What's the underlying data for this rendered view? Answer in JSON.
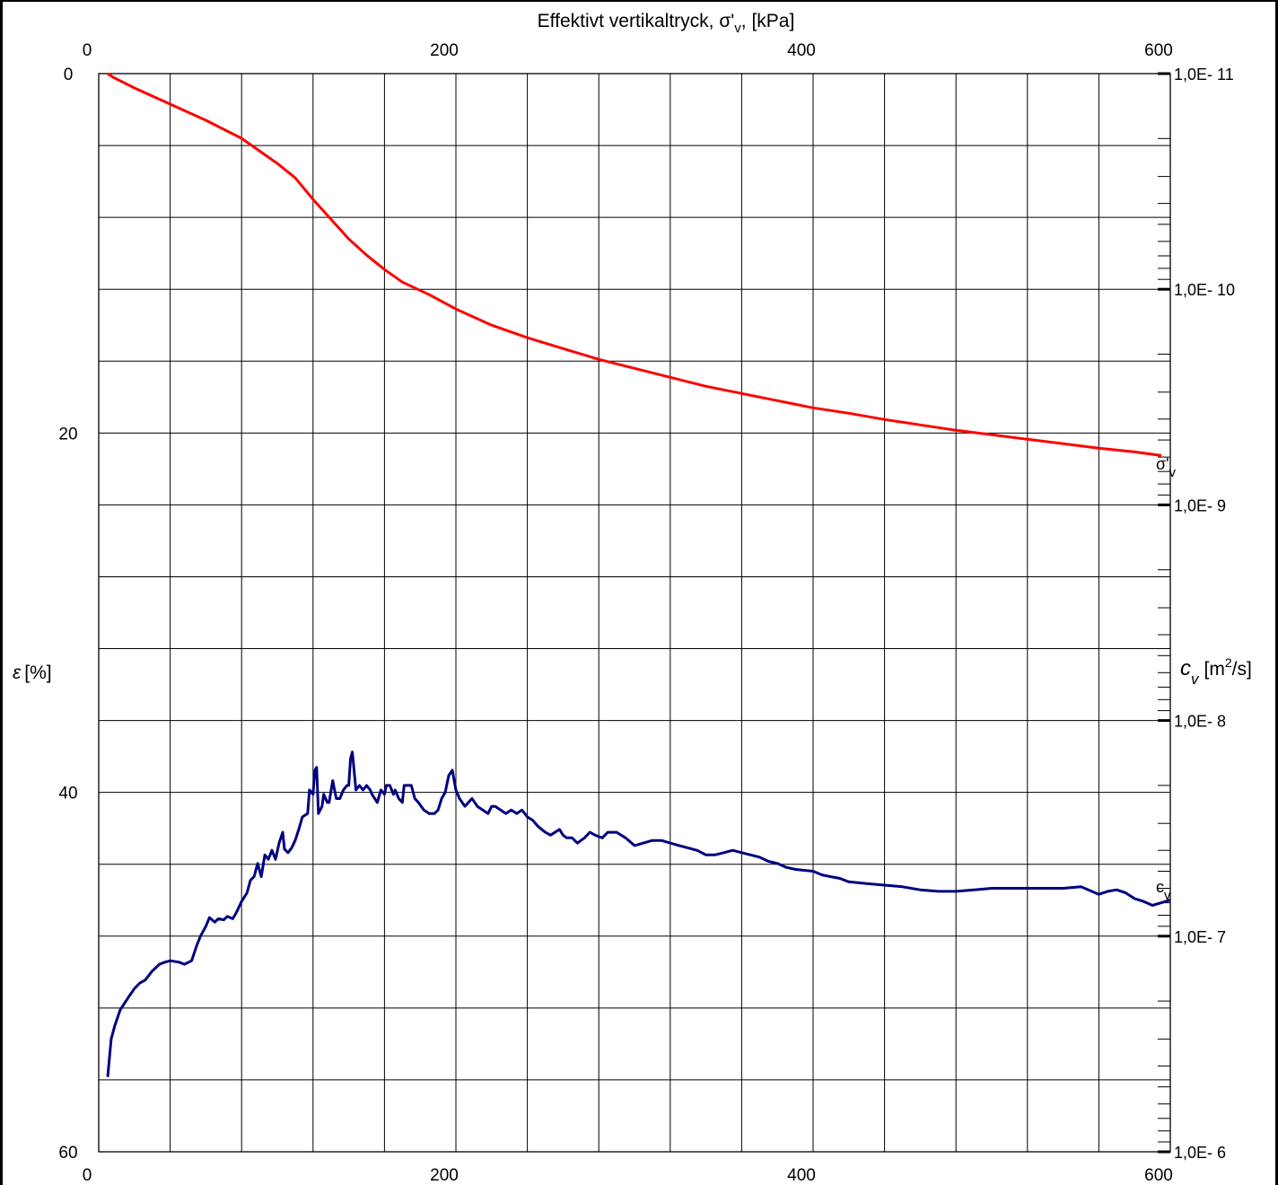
{
  "chart_data": {
    "type": "line",
    "title": "Effektivt vertikaltryck, σ'v, [kPa]",
    "title_parts": {
      "main": "Effektivt vertikaltryck, σ'",
      "sub": "v",
      "tail": ", [kPa]"
    },
    "xlim": [
      0,
      600
    ],
    "x_ticks": [
      0,
      200,
      400,
      600
    ],
    "y_left": {
      "label": "ε [%]",
      "label_symbol": "ε",
      "label_unit": "[%]",
      "lim": [
        0,
        60
      ],
      "ticks": [
        0,
        20,
        40,
        60
      ],
      "inverted": true
    },
    "y_right": {
      "label": "cv [m2/s]",
      "label_symbol": "c",
      "label_sub": "v",
      "label_unit_pre": "[m",
      "label_unit_sup": "2",
      "label_unit_post": "/s]",
      "scale": "log",
      "lim": [
        1e-11,
        1e-06
      ],
      "ticks": [
        1e-11,
        1e-10,
        1e-09,
        1e-08,
        1e-07,
        1e-06
      ],
      "tick_labels": [
        "1,0E- 11",
        "1,0E- 10",
        "1,0E- 9",
        "1,0E- 8",
        "1,0E- 7",
        "1,0E- 6"
      ]
    },
    "grid": true,
    "series": [
      {
        "name": "σ'v",
        "label_main": "σ'",
        "label_sub": "v",
        "axis": "left",
        "color": "#ff0000",
        "points": [
          [
            5,
            0
          ],
          [
            8,
            0.2
          ],
          [
            20,
            0.8
          ],
          [
            40,
            1.7
          ],
          [
            60,
            2.6
          ],
          [
            80,
            3.6
          ],
          [
            90,
            4.3
          ],
          [
            100,
            5.0
          ],
          [
            110,
            5.8
          ],
          [
            120,
            7.0
          ],
          [
            130,
            8.1
          ],
          [
            140,
            9.2
          ],
          [
            150,
            10.1
          ],
          [
            160,
            10.9
          ],
          [
            170,
            11.6
          ],
          [
            185,
            12.3
          ],
          [
            200,
            13.1
          ],
          [
            220,
            14.0
          ],
          [
            240,
            14.7
          ],
          [
            260,
            15.3
          ],
          [
            280,
            15.9
          ],
          [
            300,
            16.4
          ],
          [
            320,
            16.9
          ],
          [
            340,
            17.4
          ],
          [
            360,
            17.8
          ],
          [
            380,
            18.2
          ],
          [
            400,
            18.6
          ],
          [
            420,
            18.9
          ],
          [
            440,
            19.25
          ],
          [
            460,
            19.55
          ],
          [
            480,
            19.85
          ],
          [
            500,
            20.1
          ],
          [
            520,
            20.35
          ],
          [
            540,
            20.6
          ],
          [
            560,
            20.85
          ],
          [
            580,
            21.05
          ],
          [
            595,
            21.25
          ]
        ]
      },
      {
        "name": "cv",
        "label_main": "c",
        "label_sub": "v",
        "axis": "right",
        "color": "#000080",
        "points": [
          [
            5,
            4.5e-07
          ],
          [
            7,
            3e-07
          ],
          [
            9,
            2.6e-07
          ],
          [
            12,
            2.2e-07
          ],
          [
            17,
            1.9e-07
          ],
          [
            20,
            1.75e-07
          ],
          [
            23,
            1.65e-07
          ],
          [
            26,
            1.6e-07
          ],
          [
            30,
            1.45e-07
          ],
          [
            34,
            1.35e-07
          ],
          [
            37,
            1.32e-07
          ],
          [
            40,
            1.3e-07
          ],
          [
            45,
            1.32e-07
          ],
          [
            48,
            1.35e-07
          ],
          [
            52,
            1.3e-07
          ],
          [
            55,
            1.1e-07
          ],
          [
            57,
            1e-07
          ],
          [
            60,
            9e-08
          ],
          [
            62,
            8.2e-08
          ],
          [
            65,
            8.6e-08
          ],
          [
            67,
            8.3e-08
          ],
          [
            70,
            8.4e-08
          ],
          [
            72,
            8.1e-08
          ],
          [
            75,
            8.3e-08
          ],
          [
            77,
            7.8e-08
          ],
          [
            80,
            6.9e-08
          ],
          [
            83,
            6.3e-08
          ],
          [
            85,
            5.5e-08
          ],
          [
            87,
            5.3e-08
          ],
          [
            89,
            4.6e-08
          ],
          [
            91,
            5.3e-08
          ],
          [
            93,
            4.2e-08
          ],
          [
            95,
            4.4e-08
          ],
          [
            97,
            4e-08
          ],
          [
            99,
            4.4e-08
          ],
          [
            101,
            3.7e-08
          ],
          [
            103,
            3.3e-08
          ],
          [
            104,
            3.95e-08
          ],
          [
            106,
            4.1e-08
          ],
          [
            108,
            3.9e-08
          ],
          [
            110,
            3.6e-08
          ],
          [
            112,
            3.2e-08
          ],
          [
            114,
            2.8e-08
          ],
          [
            117,
            2.7e-08
          ],
          [
            118,
            2.1e-08
          ],
          [
            120,
            2.2e-08
          ],
          [
            121,
            1.7e-08
          ],
          [
            122,
            1.65e-08
          ],
          [
            123,
            2.7e-08
          ],
          [
            125,
            2.5e-08
          ],
          [
            126,
            2.2e-08
          ],
          [
            128,
            2.4e-08
          ],
          [
            129,
            2.4e-08
          ],
          [
            131,
            1.9e-08
          ],
          [
            133,
            2.3e-08
          ],
          [
            135,
            2.3e-08
          ],
          [
            137,
            2.1e-08
          ],
          [
            139,
            2e-08
          ],
          [
            140,
            2e-08
          ],
          [
            141,
            1.5e-08
          ],
          [
            142,
            1.4e-08
          ],
          [
            144,
            2.1e-08
          ],
          [
            146,
            2e-08
          ],
          [
            148,
            2.1e-08
          ],
          [
            150,
            2e-08
          ],
          [
            152,
            2.1e-08
          ],
          [
            153,
            2.2e-08
          ],
          [
            156,
            2.4e-08
          ],
          [
            158,
            2.1e-08
          ],
          [
            160,
            2.2e-08
          ],
          [
            161,
            2e-08
          ],
          [
            163,
            2e-08
          ],
          [
            165,
            2.2e-08
          ],
          [
            166,
            2.1e-08
          ],
          [
            168,
            2.3e-08
          ],
          [
            170,
            2.4e-08
          ],
          [
            171,
            2e-08
          ],
          [
            173,
            2e-08
          ],
          [
            175,
            2e-08
          ],
          [
            177,
            2.3e-08
          ],
          [
            179,
            2.4e-08
          ],
          [
            182,
            2.6e-08
          ],
          [
            185,
            2.7e-08
          ],
          [
            188,
            2.7e-08
          ],
          [
            190,
            2.6e-08
          ],
          [
            192,
            2.3e-08
          ],
          [
            194,
            2.15e-08
          ],
          [
            196,
            1.8e-08
          ],
          [
            198,
            1.7e-08
          ],
          [
            200,
            2.1e-08
          ],
          [
            202,
            2.3e-08
          ],
          [
            205,
            2.5e-08
          ],
          [
            207,
            2.4e-08
          ],
          [
            209,
            2.3e-08
          ],
          [
            212,
            2.5e-08
          ],
          [
            215,
            2.6e-08
          ],
          [
            218,
            2.7e-08
          ],
          [
            220,
            2.5e-08
          ],
          [
            222,
            2.5e-08
          ],
          [
            225,
            2.6e-08
          ],
          [
            228,
            2.7e-08
          ],
          [
            231,
            2.6e-08
          ],
          [
            234,
            2.7e-08
          ],
          [
            237,
            2.6e-08
          ],
          [
            240,
            2.8e-08
          ],
          [
            243,
            2.9e-08
          ],
          [
            246,
            3.1e-08
          ],
          [
            250,
            3.3e-08
          ],
          [
            253,
            3.4e-08
          ],
          [
            258,
            3.2e-08
          ],
          [
            260,
            3.4e-08
          ],
          [
            262,
            3.5e-08
          ],
          [
            265,
            3.5e-08
          ],
          [
            268,
            3.7e-08
          ],
          [
            272,
            3.5e-08
          ],
          [
            275,
            3.3e-08
          ],
          [
            278,
            3.4e-08
          ],
          [
            282,
            3.5e-08
          ],
          [
            285,
            3.3e-08
          ],
          [
            290,
            3.3e-08
          ],
          [
            295,
            3.5e-08
          ],
          [
            300,
            3.8e-08
          ],
          [
            305,
            3.7e-08
          ],
          [
            310,
            3.6e-08
          ],
          [
            315,
            3.6e-08
          ],
          [
            320,
            3.7e-08
          ],
          [
            325,
            3.8e-08
          ],
          [
            330,
            3.9e-08
          ],
          [
            335,
            4e-08
          ],
          [
            340,
            4.2e-08
          ],
          [
            345,
            4.2e-08
          ],
          [
            350,
            4.1e-08
          ],
          [
            355,
            4e-08
          ],
          [
            360,
            4.1e-08
          ],
          [
            365,
            4.2e-08
          ],
          [
            370,
            4.3e-08
          ],
          [
            375,
            4.5e-08
          ],
          [
            380,
            4.6e-08
          ],
          [
            385,
            4.8e-08
          ],
          [
            390,
            4.9e-08
          ],
          [
            400,
            5e-08
          ],
          [
            405,
            5.2e-08
          ],
          [
            410,
            5.3e-08
          ],
          [
            415,
            5.4e-08
          ],
          [
            420,
            5.6e-08
          ],
          [
            430,
            5.7e-08
          ],
          [
            440,
            5.8e-08
          ],
          [
            450,
            5.9e-08
          ],
          [
            460,
            6.1e-08
          ],
          [
            470,
            6.2e-08
          ],
          [
            480,
            6.2e-08
          ],
          [
            490,
            6.1e-08
          ],
          [
            500,
            6e-08
          ],
          [
            510,
            6e-08
          ],
          [
            520,
            6e-08
          ],
          [
            530,
            6e-08
          ],
          [
            540,
            6e-08
          ],
          [
            550,
            5.9e-08
          ],
          [
            560,
            6.4e-08
          ],
          [
            565,
            6.2e-08
          ],
          [
            570,
            6.1e-08
          ],
          [
            575,
            6.3e-08
          ],
          [
            580,
            6.7e-08
          ],
          [
            585,
            6.9e-08
          ],
          [
            590,
            7.2e-08
          ],
          [
            595,
            7e-08
          ],
          [
            600,
            6.8e-08
          ]
        ]
      }
    ]
  }
}
